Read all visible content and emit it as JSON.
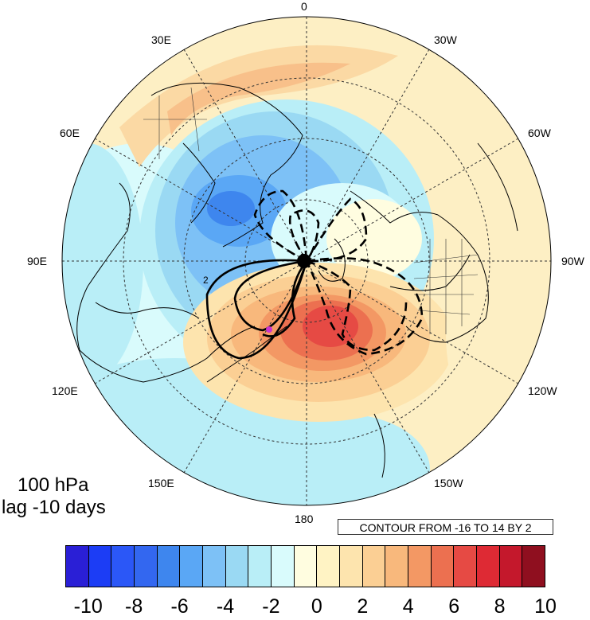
{
  "map": {
    "projection": "north polar stereographic",
    "field": "shaded anomaly with black contour overlay (dashed = negative)",
    "longitude_labels": {
      "top": "0",
      "upper_left": "30E",
      "upper_right": "30W",
      "mid_left_upper": "60E",
      "mid_right_upper": "60W",
      "left": "90E",
      "right": "90W",
      "lower_left": "120E",
      "lower_right": "120W",
      "bottom_left": "150E",
      "bottom_right": "150W",
      "bottom": "180"
    },
    "marker_color": "#cc33cc"
  },
  "panel": {
    "level": "100 hPa",
    "lag": "lag -10 days"
  },
  "contour_note": "CONTOUR FROM -16 TO 14 BY 2",
  "contour_label": "2",
  "colorbar": {
    "colors": [
      "#2a1fd6",
      "#1c3df5",
      "#2b57f7",
      "#3367f0",
      "#3e86ee",
      "#5aa7f5",
      "#7dc1f6",
      "#9ad9f3",
      "#b9eef7",
      "#d9fbfc",
      "#fffde0",
      "#fff3c4",
      "#fde4ae",
      "#fbcf94",
      "#f8b87c",
      "#f39864",
      "#ec7050",
      "#e64a44",
      "#de2a34",
      "#c4182c",
      "#8f0f1f"
    ],
    "tick_labels": [
      "-10",
      "-8",
      "-6",
      "-4",
      "-2",
      "0",
      "2",
      "4",
      "6",
      "8",
      "10"
    ]
  }
}
